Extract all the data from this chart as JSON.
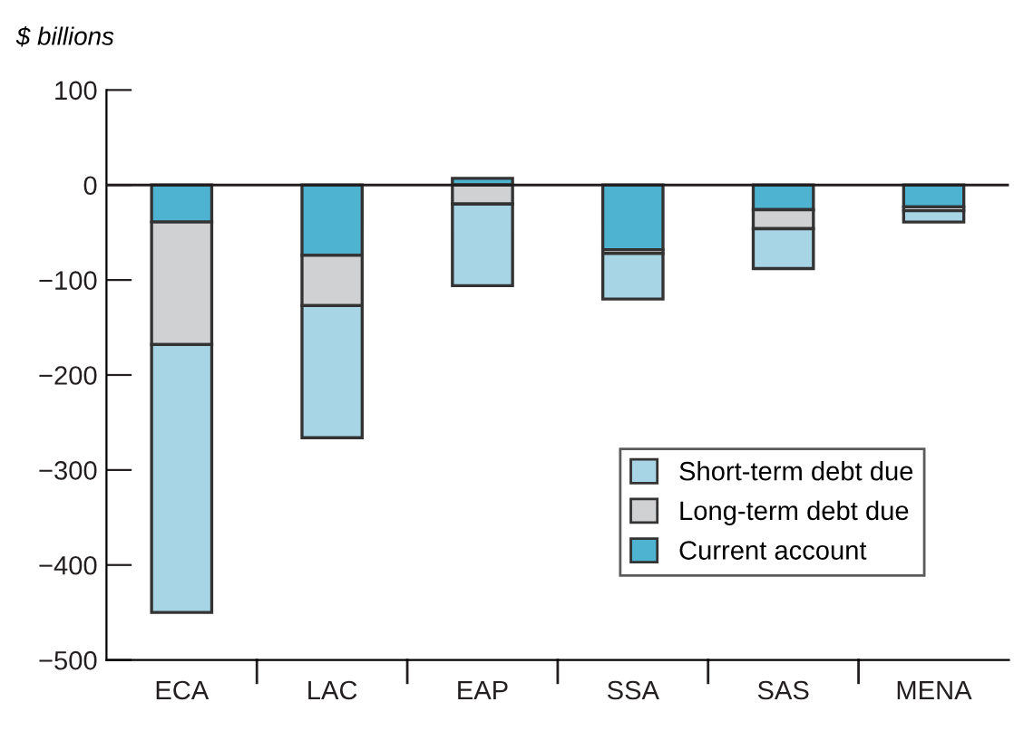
{
  "chart_data": {
    "type": "bar",
    "stacked": true,
    "ylabel": "$ billions",
    "categories": [
      "ECA",
      "LAC",
      "EAP",
      "SSA",
      "SAS",
      "MENA"
    ],
    "series": [
      {
        "name": "Current account",
        "color": "#4db3d1",
        "values": [
          -39,
          -74,
          7,
          -68,
          -26,
          -23
        ]
      },
      {
        "name": "Long-term debt due",
        "color": "#d0d1d3",
        "values": [
          -129,
          -53,
          -20,
          -4,
          -20,
          -4
        ]
      },
      {
        "name": "Short-term debt due",
        "color": "#a8d5e5",
        "values": [
          -282,
          -139,
          -86,
          -48,
          -42,
          -12
        ]
      }
    ],
    "ylim": [
      -500,
      100
    ],
    "yticks": [
      {
        "value": -500,
        "label": "−500"
      },
      {
        "value": -400,
        "label": "−400"
      },
      {
        "value": -300,
        "label": "−300"
      },
      {
        "value": -200,
        "label": "−200"
      },
      {
        "value": -100,
        "label": "−100"
      },
      0,
      100
    ],
    "ref_lines": [
      {
        "axis": "y",
        "value": 0,
        "color": "#231f20"
      }
    ],
    "legend": "lower right",
    "grid": false
  }
}
